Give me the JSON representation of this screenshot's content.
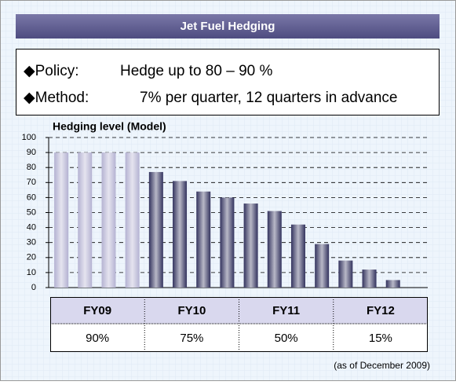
{
  "header": {
    "title": "Jet Fuel Hedging"
  },
  "policy": {
    "label": "◆Policy:",
    "text": "Hedge up to 80 – 90 %"
  },
  "method": {
    "label": "◆Method:",
    "text": "7% per quarter, 12 quarters in advance"
  },
  "chart_data": {
    "type": "bar",
    "title": "Hedging level (Model)",
    "categories": [
      null,
      null,
      null,
      null,
      null,
      null,
      null,
      null,
      null,
      null,
      null,
      null,
      null,
      null,
      null,
      null
    ],
    "values": [
      90,
      90,
      90,
      90,
      77,
      71,
      64,
      60,
      56,
      51,
      42,
      29,
      18,
      12,
      5,
      0
    ],
    "colors": [
      "#b4b2d2",
      "#b4b2d2",
      "#b4b2d2",
      "#b4b2d2",
      "#33335e",
      "#33335e",
      "#33335e",
      "#33335e",
      "#33335e",
      "#33335e",
      "#33335e",
      "#33335e",
      "#33335e",
      "#33335e",
      "#33335e",
      "#33335e"
    ],
    "ylim": [
      0,
      100
    ],
    "yticks": [
      0,
      10,
      20,
      30,
      40,
      50,
      60,
      70,
      80,
      90,
      100
    ],
    "grid": true
  },
  "table": {
    "header": [
      "FY09",
      "FY10",
      "FY11",
      "FY12"
    ],
    "rows": [
      [
        "90%",
        "75%",
        "50%",
        "15%"
      ]
    ]
  },
  "footnote": "(as of December 2009)"
}
